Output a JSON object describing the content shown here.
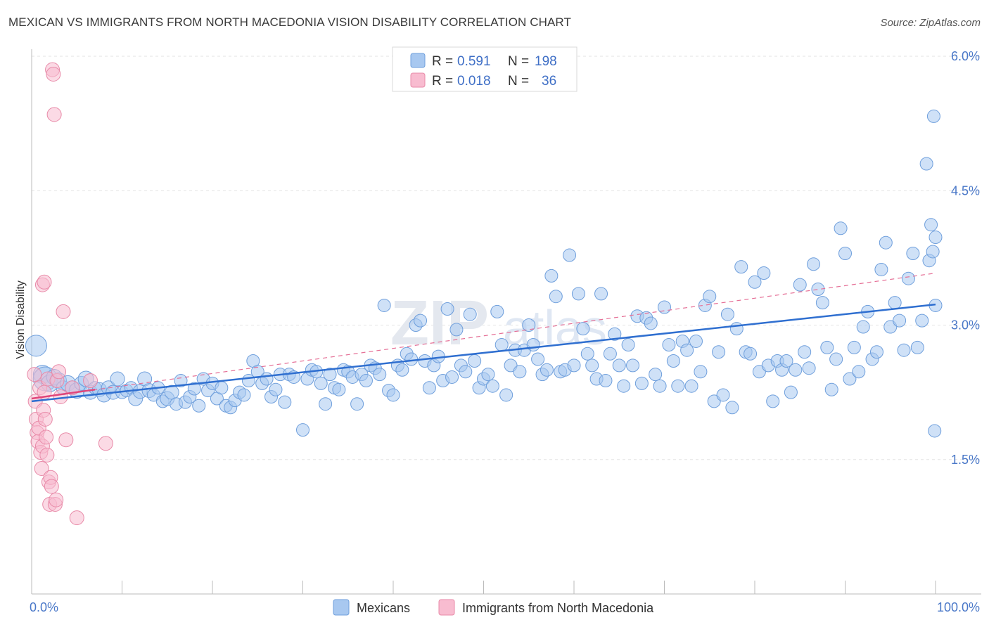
{
  "title": "MEXICAN VS IMMIGRANTS FROM NORTH MACEDONIA VISION DISABILITY CORRELATION CHART",
  "source": "Source: ZipAtlas.com",
  "watermark": {
    "zip": "ZIP",
    "atlas": "atlas"
  },
  "legend_top": [
    {
      "r_label": "R =",
      "r_value": "0.591",
      "n_label": "N =",
      "n_value": "198",
      "color": "#a8c8f0",
      "stroke": "#6f9fdc"
    },
    {
      "r_label": "R =",
      "r_value": "0.018",
      "n_label": "N =",
      "n_value": "36",
      "color": "#f8bcd0",
      "stroke": "#e88aa8"
    }
  ],
  "legend_bottom": [
    {
      "label": "Mexicans",
      "color": "#a8c8f0",
      "stroke": "#6f9fdc"
    },
    {
      "label": "Immigrants from North Macedonia",
      "color": "#f8bcd0",
      "stroke": "#e88aa8"
    }
  ],
  "chart_data": {
    "type": "scatter",
    "ylabel": "Vision Disability",
    "xlim": [
      0,
      100
    ],
    "ylim": [
      0.0,
      6.2
    ],
    "x_tick_labels": [
      {
        "value": 0,
        "label": "0.0%"
      },
      {
        "value": 100,
        "label": "100.0%"
      }
    ],
    "y_ticks": [
      {
        "value": 1.5,
        "label": "1.5%"
      },
      {
        "value": 3.0,
        "label": "3.0%"
      },
      {
        "value": 4.5,
        "label": "4.5%"
      },
      {
        "value": 6.0,
        "label": "6.0%"
      }
    ],
    "grid": true,
    "series": [
      {
        "name": "Mexicans",
        "color": "#a8c8f0",
        "stroke": "#6f9fdc",
        "trend": {
          "x": [
            0,
            100
          ],
          "y": [
            2.15,
            3.23
          ],
          "color": "#2f6fd0",
          "dashed": false
        },
        "points": [
          [
            0.5,
            2.77,
            14
          ],
          [
            1.2,
            2.45,
            12
          ],
          [
            1.5,
            2.4,
            16
          ],
          [
            2,
            2.35,
            11
          ],
          [
            2.5,
            2.42,
            10
          ],
          [
            3,
            2.38,
            10
          ],
          [
            3.5,
            2.3,
            9
          ],
          [
            4,
            2.35,
            10
          ],
          [
            4.5,
            2.3,
            9
          ],
          [
            5,
            2.27,
            10
          ],
          [
            5.5,
            2.35,
            9
          ],
          [
            6,
            2.4,
            10
          ],
          [
            6.5,
            2.25,
            9
          ],
          [
            7,
            2.3,
            8
          ],
          [
            7.5,
            2.28,
            9
          ],
          [
            8,
            2.22,
            9
          ],
          [
            8.5,
            2.3,
            9
          ],
          [
            9,
            2.25,
            9
          ],
          [
            9.5,
            2.4,
            9
          ],
          [
            10,
            2.25,
            8
          ],
          [
            10.5,
            2.27,
            8
          ],
          [
            11,
            2.3,
            8
          ],
          [
            11.5,
            2.18,
            9
          ],
          [
            12,
            2.26,
            9
          ],
          [
            12.5,
            2.4,
            9
          ],
          [
            13,
            2.27,
            9
          ],
          [
            13.5,
            2.22,
            8
          ],
          [
            14,
            2.3,
            8
          ],
          [
            14.5,
            2.15,
            8
          ],
          [
            15,
            2.18,
            9
          ],
          [
            15.5,
            2.25,
            9
          ],
          [
            16,
            2.12,
            8
          ],
          [
            16.5,
            2.38,
            8
          ],
          [
            17,
            2.14,
            8
          ],
          [
            17.5,
            2.2,
            8
          ],
          [
            18,
            2.29,
            8
          ],
          [
            18.5,
            2.1,
            8
          ],
          [
            19,
            2.4,
            8
          ],
          [
            19.5,
            2.27,
            8
          ],
          [
            20,
            2.35,
            8
          ],
          [
            20.5,
            2.18,
            8
          ],
          [
            21,
            2.3,
            8
          ],
          [
            21.5,
            2.1,
            8
          ],
          [
            22,
            2.08,
            8
          ],
          [
            22.5,
            2.16,
            8
          ],
          [
            23,
            2.25,
            8
          ],
          [
            23.5,
            2.22,
            8
          ],
          [
            24,
            2.38,
            8
          ],
          [
            24.5,
            2.6,
            8
          ],
          [
            25,
            2.48,
            8
          ],
          [
            25.5,
            2.35,
            8
          ],
          [
            26,
            2.4,
            8
          ],
          [
            26.5,
            2.2,
            8
          ],
          [
            27,
            2.28,
            8
          ],
          [
            27.5,
            2.45,
            8
          ],
          [
            28,
            2.14,
            8
          ],
          [
            28.5,
            2.45,
            8
          ],
          [
            29,
            2.42,
            8
          ],
          [
            30,
            1.83,
            8
          ],
          [
            30.5,
            2.4,
            8
          ],
          [
            31,
            2.5,
            8
          ],
          [
            31.5,
            2.48,
            8
          ],
          [
            32,
            2.35,
            8
          ],
          [
            32.5,
            2.12,
            8
          ],
          [
            33,
            2.45,
            8
          ],
          [
            33.5,
            2.3,
            8
          ],
          [
            34,
            2.28,
            8
          ],
          [
            34.5,
            2.5,
            8
          ],
          [
            35,
            2.48,
            8
          ],
          [
            35.5,
            2.42,
            8
          ],
          [
            36,
            2.12,
            8
          ],
          [
            36.5,
            2.45,
            8
          ],
          [
            37,
            2.38,
            8
          ],
          [
            37.5,
            2.55,
            8
          ],
          [
            38,
            2.52,
            8
          ],
          [
            38.5,
            2.45,
            8
          ],
          [
            39,
            3.22,
            8
          ],
          [
            39.5,
            2.27,
            8
          ],
          [
            40,
            2.22,
            8
          ],
          [
            40.5,
            2.55,
            8
          ],
          [
            41,
            2.5,
            8
          ],
          [
            41.5,
            2.68,
            8
          ],
          [
            42,
            2.62,
            8
          ],
          [
            42.5,
            3.0,
            8
          ],
          [
            43,
            3.05,
            8
          ],
          [
            43.5,
            2.6,
            8
          ],
          [
            44,
            2.3,
            8
          ],
          [
            44.5,
            2.55,
            8
          ],
          [
            45,
            2.65,
            8
          ],
          [
            45.5,
            2.38,
            8
          ],
          [
            46,
            3.18,
            8
          ],
          [
            46.5,
            2.42,
            8
          ],
          [
            47,
            2.95,
            8
          ],
          [
            47.5,
            2.55,
            8
          ],
          [
            48,
            2.48,
            8
          ],
          [
            48.5,
            3.12,
            8
          ],
          [
            49,
            2.6,
            8
          ],
          [
            49.5,
            2.3,
            8
          ],
          [
            50,
            2.4,
            8
          ],
          [
            50.5,
            2.45,
            8
          ],
          [
            51,
            2.32,
            8
          ],
          [
            51.5,
            3.15,
            8
          ],
          [
            52,
            2.78,
            8
          ],
          [
            52.5,
            2.22,
            8
          ],
          [
            53,
            2.55,
            8
          ],
          [
            53.5,
            2.72,
            8
          ],
          [
            54,
            2.48,
            8
          ],
          [
            54.5,
            2.72,
            8
          ],
          [
            55,
            3.0,
            8
          ],
          [
            55.5,
            2.78,
            8
          ],
          [
            56,
            2.62,
            8
          ],
          [
            56.5,
            2.45,
            8
          ],
          [
            57,
            2.5,
            8
          ],
          [
            57.5,
            3.55,
            8
          ],
          [
            58,
            3.32,
            8
          ],
          [
            58.5,
            2.48,
            8
          ],
          [
            59,
            2.5,
            8
          ],
          [
            59.5,
            3.78,
            8
          ],
          [
            60,
            2.55,
            8
          ],
          [
            60.5,
            3.35,
            8
          ],
          [
            61,
            2.96,
            8
          ],
          [
            61.5,
            2.68,
            8
          ],
          [
            62,
            2.55,
            8
          ],
          [
            62.5,
            2.4,
            8
          ],
          [
            63,
            3.35,
            8
          ],
          [
            63.5,
            2.38,
            8
          ],
          [
            64,
            2.68,
            8
          ],
          [
            64.5,
            2.9,
            8
          ],
          [
            65,
            2.55,
            8
          ],
          [
            65.5,
            2.32,
            8
          ],
          [
            66,
            2.78,
            8
          ],
          [
            66.5,
            2.55,
            8
          ],
          [
            67,
            3.1,
            8
          ],
          [
            67.5,
            2.35,
            8
          ],
          [
            68,
            3.08,
            8
          ],
          [
            68.5,
            3.02,
            8
          ],
          [
            69,
            2.45,
            8
          ],
          [
            69.5,
            2.32,
            8
          ],
          [
            70,
            3.2,
            8
          ],
          [
            70.5,
            2.78,
            8
          ],
          [
            71,
            2.6,
            8
          ],
          [
            71.5,
            2.32,
            8
          ],
          [
            72,
            2.82,
            8
          ],
          [
            72.5,
            2.72,
            8
          ],
          [
            73,
            2.32,
            8
          ],
          [
            73.5,
            2.82,
            8
          ],
          [
            74,
            2.48,
            8
          ],
          [
            74.5,
            3.22,
            8
          ],
          [
            75,
            3.32,
            8
          ],
          [
            75.5,
            2.15,
            8
          ],
          [
            76,
            2.7,
            8
          ],
          [
            76.5,
            2.22,
            8
          ],
          [
            77,
            3.12,
            8
          ],
          [
            77.5,
            2.08,
            8
          ],
          [
            78,
            2.96,
            8
          ],
          [
            78.5,
            3.65,
            8
          ],
          [
            79,
            2.7,
            8
          ],
          [
            79.5,
            2.68,
            8
          ],
          [
            80,
            3.48,
            8
          ],
          [
            80.5,
            2.48,
            8
          ],
          [
            81,
            3.58,
            8
          ],
          [
            81.5,
            2.55,
            8
          ],
          [
            82,
            2.15,
            8
          ],
          [
            82.5,
            2.6,
            8
          ],
          [
            83,
            2.5,
            8
          ],
          [
            83.5,
            2.6,
            8
          ],
          [
            84,
            2.25,
            8
          ],
          [
            84.5,
            2.5,
            8
          ],
          [
            85,
            3.45,
            8
          ],
          [
            85.5,
            2.7,
            8
          ],
          [
            86,
            2.52,
            8
          ],
          [
            86.5,
            3.68,
            8
          ],
          [
            87,
            3.4,
            8
          ],
          [
            87.5,
            3.25,
            8
          ],
          [
            88,
            2.75,
            8
          ],
          [
            88.5,
            2.28,
            8
          ],
          [
            89,
            2.62,
            8
          ],
          [
            89.5,
            4.08,
            8
          ],
          [
            90,
            3.8,
            8
          ],
          [
            90.5,
            2.4,
            8
          ],
          [
            91,
            2.75,
            8
          ],
          [
            91.5,
            2.48,
            8
          ],
          [
            92,
            2.98,
            8
          ],
          [
            92.5,
            3.15,
            8
          ],
          [
            93,
            2.62,
            8
          ],
          [
            93.5,
            2.7,
            8
          ],
          [
            94,
            3.62,
            8
          ],
          [
            94.5,
            3.92,
            8
          ],
          [
            95,
            2.98,
            8
          ],
          [
            95.5,
            3.25,
            8
          ],
          [
            96,
            3.05,
            8
          ],
          [
            96.5,
            2.72,
            8
          ],
          [
            97,
            3.52,
            8
          ],
          [
            97.5,
            3.8,
            8
          ],
          [
            98,
            2.75,
            8
          ],
          [
            98.5,
            3.05,
            8
          ],
          [
            99,
            4.8,
            8
          ],
          [
            99.3,
            3.72,
            8
          ],
          [
            99.5,
            4.12,
            8
          ],
          [
            99.7,
            3.82,
            8
          ],
          [
            99.8,
            5.33,
            8
          ],
          [
            99.9,
            1.82,
            8
          ],
          [
            100,
            3.98,
            8
          ],
          [
            100,
            3.22,
            8
          ]
        ]
      },
      {
        "name": "Immigrants from North Macedonia",
        "color": "#f8bcd0",
        "stroke": "#e88aa8",
        "trend": {
          "x": [
            0,
            100
          ],
          "y": [
            2.18,
            3.58
          ],
          "color": "#e56f96",
          "dashed": true
        },
        "trend_solid": {
          "x": [
            0,
            7
          ],
          "y": [
            2.18,
            2.28
          ],
          "color": "#e0457a"
        },
        "points": [
          [
            0.3,
            2.45,
            9
          ],
          [
            0.4,
            2.15,
            9
          ],
          [
            0.5,
            1.95,
            9
          ],
          [
            0.6,
            1.8,
            9
          ],
          [
            0.7,
            1.7,
            9
          ],
          [
            0.8,
            1.85,
            9
          ],
          [
            0.9,
            2.3,
            9
          ],
          [
            1.0,
            1.58,
            9
          ],
          [
            1.1,
            1.4,
            9
          ],
          [
            1.2,
            1.65,
            9
          ],
          [
            1.3,
            2.05,
            9
          ],
          [
            1.4,
            2.25,
            9
          ],
          [
            1.5,
            1.95,
            9
          ],
          [
            1.6,
            1.75,
            9
          ],
          [
            1.7,
            1.55,
            9
          ],
          [
            1.8,
            2.4,
            9
          ],
          [
            1.9,
            1.25,
            9
          ],
          [
            2.0,
            1.0,
            9
          ],
          [
            2.1,
            1.3,
            9
          ],
          [
            2.2,
            1.2,
            9
          ],
          [
            2.3,
            5.85,
            9
          ],
          [
            2.4,
            5.8,
            9
          ],
          [
            2.5,
            5.35,
            9
          ],
          [
            2.6,
            1.0,
            9
          ],
          [
            2.7,
            1.05,
            9
          ],
          [
            2.8,
            2.38,
            9
          ],
          [
            3.0,
            2.48,
            9
          ],
          [
            3.2,
            2.2,
            9
          ],
          [
            3.5,
            3.15,
            9
          ],
          [
            3.8,
            1.72,
            9
          ],
          [
            4.5,
            2.3,
            9
          ],
          [
            5.0,
            0.85,
            9
          ],
          [
            6.5,
            2.38,
            9
          ],
          [
            8.2,
            1.68,
            9
          ],
          [
            1.2,
            3.45,
            9
          ],
          [
            1.4,
            3.48,
            9
          ]
        ]
      }
    ]
  }
}
